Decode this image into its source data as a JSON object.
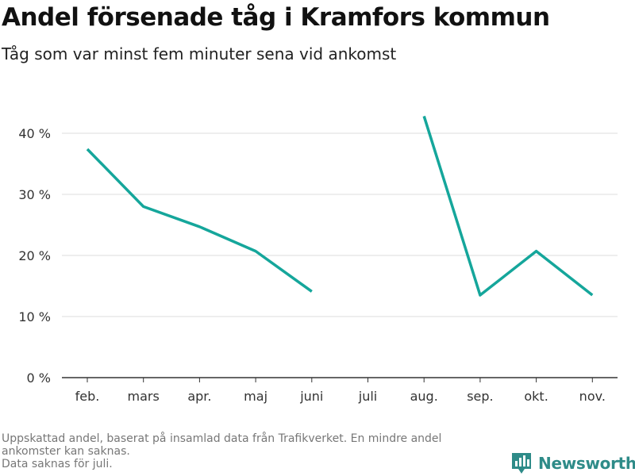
{
  "title": "Andel försenade tåg i Kramfors kommun",
  "subtitle": "Tåg som var minst fem minuter sena vid ankomst",
  "footnote": [
    "Uppskattad andel, baserat på insamlad data från Trafikverket. En mindre andel",
    "ankomster kan saknas.",
    "Data saknas för juli."
  ],
  "brand": {
    "name": "Newsworthy",
    "icon": "bar-chart-logo-icon",
    "color": "#2e8b88"
  },
  "chart_data": {
    "type": "line",
    "categories": [
      "feb.",
      "mars",
      "apr.",
      "maj",
      "juni",
      "juli",
      "aug.",
      "sep.",
      "okt.",
      "nov."
    ],
    "series": [
      {
        "values": [
          37.4,
          28.0,
          24.7,
          20.7,
          14.1,
          null,
          42.8,
          13.5,
          20.7,
          13.5
        ]
      }
    ],
    "yticks": [
      0,
      10,
      20,
      30,
      40
    ],
    "ytick_suffix": " %",
    "ylim": [
      0,
      45
    ],
    "grid": true,
    "line_color": "#15a69b"
  }
}
